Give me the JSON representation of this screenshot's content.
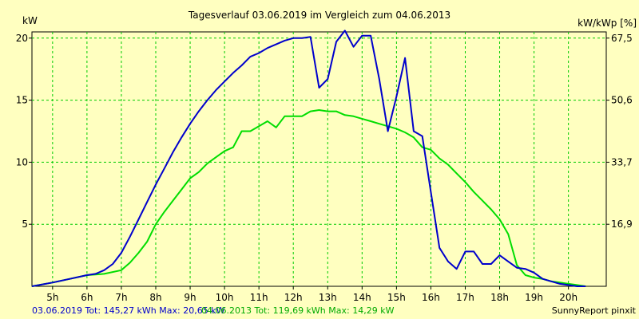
{
  "chart_data": {
    "type": "line",
    "title": "Tagesverlauf 03.06.2019 im Vergleich zum 04.06.2013",
    "ylabel_left": "kW",
    "ylabel_right": "kW/kWp [%]",
    "x_ticks": [
      "5h",
      "6h",
      "7h",
      "8h",
      "9h",
      "10h",
      "11h",
      "12h",
      "13h",
      "14h",
      "15h",
      "16h",
      "17h",
      "18h",
      "19h",
      "20h"
    ],
    "xlim": [
      4.4,
      21.1
    ],
    "ylim": [
      0,
      20.5
    ],
    "y_ticks_left": [
      5,
      10,
      15,
      20
    ],
    "y_ticks_right": [
      "16,9",
      "33,7",
      "50,6",
      "67,5"
    ],
    "grid": true,
    "series": [
      {
        "name": "03.06.2019",
        "color": "#0000cc",
        "summary": "03.06.2019 Tot: 145,27 kWh Max: 20,65 kW",
        "x": [
          4.4,
          5.0,
          5.5,
          6.0,
          6.25,
          6.5,
          6.75,
          7.0,
          7.25,
          7.5,
          7.75,
          8.0,
          8.25,
          8.5,
          8.75,
          9.0,
          9.25,
          9.5,
          9.75,
          10.0,
          10.25,
          10.5,
          10.75,
          11.0,
          11.25,
          11.5,
          11.75,
          12.0,
          12.25,
          12.5,
          12.75,
          13.0,
          13.25,
          13.5,
          13.75,
          14.0,
          14.25,
          14.5,
          14.75,
          15.0,
          15.25,
          15.5,
          15.75,
          16.0,
          16.25,
          16.5,
          16.75,
          17.0,
          17.25,
          17.5,
          17.75,
          18.0,
          18.25,
          18.5,
          18.75,
          19.0,
          19.25,
          19.5,
          19.75,
          20.0,
          20.25,
          20.5
        ],
        "values": [
          0,
          0.3,
          0.6,
          0.9,
          1.0,
          1.3,
          1.8,
          2.7,
          4.0,
          5.4,
          6.8,
          8.2,
          9.5,
          10.8,
          12.0,
          13.1,
          14.1,
          15.0,
          15.8,
          16.5,
          17.2,
          17.8,
          18.5,
          18.8,
          19.2,
          19.5,
          19.8,
          20.0,
          20.0,
          20.1,
          16.0,
          16.7,
          19.7,
          20.6,
          19.3,
          20.2,
          20.2,
          16.7,
          12.5,
          15.3,
          18.4,
          12.5,
          12.1,
          7.6,
          3.1,
          2.0,
          1.4,
          2.8,
          2.8,
          1.8,
          1.8,
          2.5,
          2.0,
          1.5,
          1.4,
          1.1,
          0.6,
          0.4,
          0.2,
          0.1,
          0,
          0
        ]
      },
      {
        "name": "04.06.2013",
        "color": "#00dd00",
        "summary": "04.06.2013 Tot: 119,69 kWh Max: 14,29 kW",
        "x": [
          4.4,
          5.0,
          5.5,
          6.0,
          6.5,
          7.0,
          7.25,
          7.5,
          7.75,
          8.0,
          8.25,
          8.5,
          8.75,
          9.0,
          9.25,
          9.5,
          9.75,
          10.0,
          10.25,
          10.5,
          10.75,
          11.0,
          11.25,
          11.5,
          11.75,
          12.0,
          12.25,
          12.5,
          12.75,
          13.0,
          13.25,
          13.5,
          13.75,
          14.0,
          14.25,
          14.5,
          14.75,
          15.0,
          15.25,
          15.5,
          15.75,
          16.0,
          16.25,
          16.5,
          16.75,
          17.0,
          17.25,
          17.5,
          17.75,
          18.0,
          18.25,
          18.5,
          18.75,
          19.0,
          19.25,
          19.5,
          19.75,
          20.0,
          20.25,
          20.5
        ],
        "values": [
          0,
          0.3,
          0.6,
          0.9,
          1.0,
          1.3,
          1.9,
          2.7,
          3.6,
          5.0,
          6.0,
          6.9,
          7.8,
          8.7,
          9.2,
          9.9,
          10.4,
          10.9,
          11.2,
          12.5,
          12.5,
          12.9,
          13.3,
          12.8,
          13.7,
          13.7,
          13.7,
          14.1,
          14.2,
          14.1,
          14.1,
          13.8,
          13.7,
          13.5,
          13.3,
          13.1,
          12.9,
          12.7,
          12.4,
          12.0,
          11.2,
          11.0,
          10.3,
          9.8,
          9.1,
          8.4,
          7.6,
          6.9,
          6.2,
          5.4,
          4.2,
          1.7,
          0.9,
          0.7,
          0.6,
          0.4,
          0.3,
          0.2,
          0.1,
          0
        ]
      }
    ],
    "credit": "SunnyReport pinxit"
  }
}
